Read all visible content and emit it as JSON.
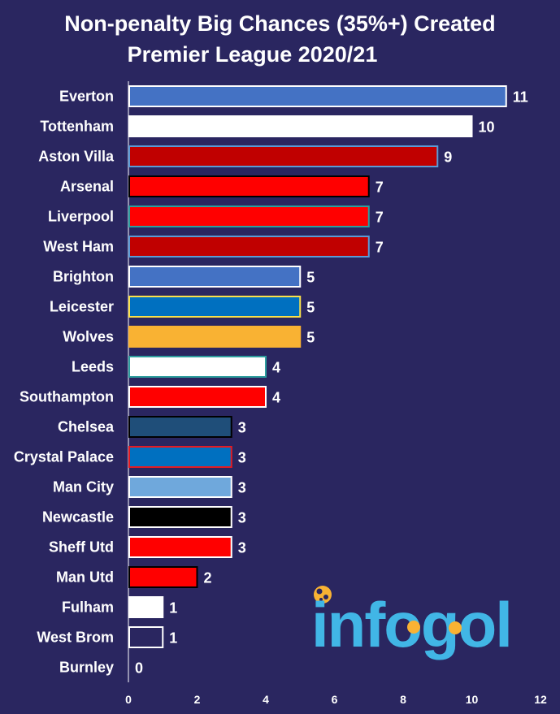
{
  "chart_data": {
    "type": "bar",
    "orientation": "horizontal",
    "title": "Non-penalty Big Chances (35%+) Created",
    "subtitle": "Premier League 2020/21",
    "xlabel": "",
    "ylabel": "",
    "xlim": [
      0,
      12
    ],
    "xticks": [
      0,
      2,
      4,
      6,
      8,
      10,
      12
    ],
    "grid": false,
    "categories": [
      "Everton",
      "Tottenham",
      "Aston Villa",
      "Arsenal",
      "Liverpool",
      "West Ham",
      "Brighton",
      "Leicester",
      "Wolves",
      "Leeds",
      "Southampton",
      "Chelsea",
      "Crystal Palace",
      "Man City",
      "Newcastle",
      "Sheff Utd",
      "Man Utd",
      "Fulham",
      "West Brom",
      "Burnley"
    ],
    "values": [
      11,
      10,
      9,
      7,
      7,
      7,
      5,
      5,
      5,
      4,
      4,
      3,
      3,
      3,
      3,
      3,
      2,
      1,
      1,
      0
    ],
    "bar_colors": [
      "#4472c4",
      "#ffffff",
      "#c00000",
      "#ff0000",
      "#ff0000",
      "#c00000",
      "#4472c4",
      "#0070c0",
      "#f9b233",
      "#ffffff",
      "#ff0000",
      "#1f4e79",
      "#0070c0",
      "#6fa8dc",
      "#000000",
      "#ff0000",
      "#ff0000",
      "#ffffff",
      "#2a2660",
      "#2a2660"
    ],
    "bar_borders": [
      "#ffffff",
      "#ffffff",
      "#5b9bd5",
      "#000000",
      "#2e9e9e",
      "#5b9bd5",
      "#ffffff",
      "#f9e04b",
      "#f9b233",
      "#2e9e9e",
      "#ffffff",
      "#000000",
      "#e31b23",
      "#ffffff",
      "#ffffff",
      "#ffffff",
      "#000000",
      "#ffffff",
      "#ffffff",
      "#ffffff"
    ]
  },
  "branding": {
    "logo_text": "infogol",
    "logo_color": "#41b6e6",
    "logo_accent": "#f9b233"
  },
  "colors": {
    "background": "#2a2660",
    "text": "#ffffff"
  }
}
